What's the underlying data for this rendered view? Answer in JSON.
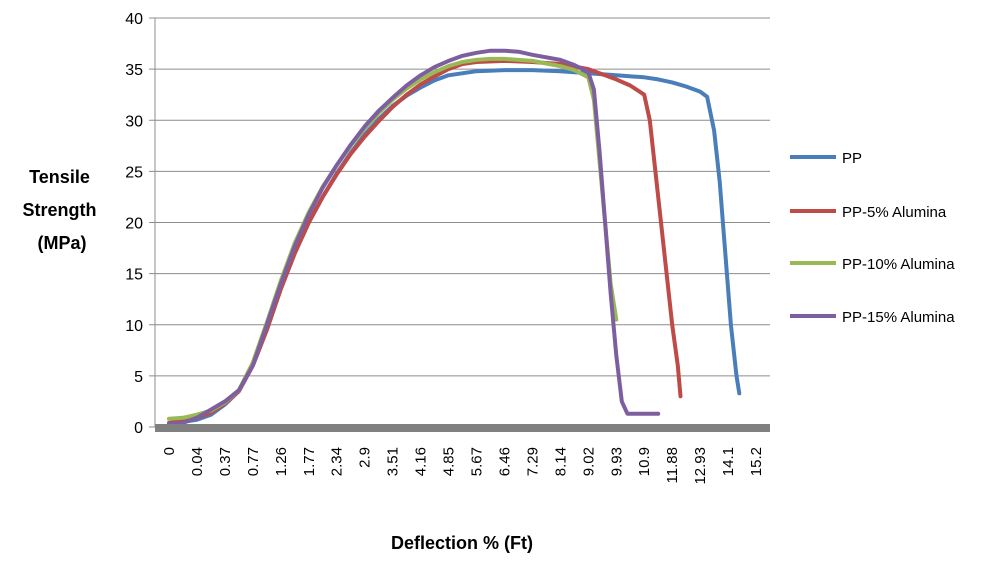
{
  "chart_data": {
    "type": "line",
    "ylabel_lines": [
      "Tensile",
      "Strength",
      "(MPa)"
    ],
    "xlabel": "Deflection % (Ft)",
    "ylim": [
      0,
      40
    ],
    "y_ticks": [
      "0",
      "5",
      "10",
      "15",
      "20",
      "25",
      "30",
      "35",
      "40"
    ],
    "x_ticks": [
      "0",
      "0.04",
      "0.37",
      "0.77",
      "1.26",
      "1.77",
      "2.34",
      "2.9",
      "3.51",
      "4.16",
      "4.85",
      "5.67",
      "6.46",
      "7.29",
      "8.14",
      "9.02",
      "9.93",
      "10.9",
      "11.88",
      "12.93",
      "14.1",
      "15.2"
    ],
    "grid": true,
    "legend_position": "right",
    "series": [
      {
        "name": "PP",
        "color": "#4a7ebb",
        "points": [
          [
            0,
            0.3
          ],
          [
            0.5,
            0.5
          ],
          [
            1,
            0.7
          ],
          [
            1.5,
            1.2
          ],
          [
            2,
            2.2
          ],
          [
            2.5,
            3.5
          ],
          [
            3,
            6
          ],
          [
            3.5,
            9.5
          ],
          [
            4,
            13.5
          ],
          [
            4.5,
            17
          ],
          [
            5,
            20
          ],
          [
            5.5,
            22.5
          ],
          [
            6,
            24.8
          ],
          [
            6.5,
            26.8
          ],
          [
            7,
            28.6
          ],
          [
            7.5,
            30.1
          ],
          [
            8,
            31.4
          ],
          [
            8.5,
            32.4
          ],
          [
            9,
            33.2
          ],
          [
            9.5,
            33.9
          ],
          [
            10,
            34.4
          ],
          [
            11,
            34.8
          ],
          [
            12,
            34.9
          ],
          [
            13,
            34.9
          ],
          [
            14,
            34.8
          ],
          [
            15,
            34.6
          ],
          [
            16,
            34.4
          ],
          [
            17,
            34.2
          ],
          [
            17.5,
            34
          ],
          [
            18,
            33.7
          ],
          [
            18.5,
            33.3
          ],
          [
            19,
            32.8
          ],
          [
            19.25,
            32.3
          ],
          [
            19.5,
            29
          ],
          [
            19.7,
            24
          ],
          [
            19.9,
            17
          ],
          [
            20.1,
            10
          ],
          [
            20.3,
            5
          ],
          [
            20.4,
            3.3
          ]
        ]
      },
      {
        "name": "PP-5% Alumina",
        "color": "#be4b48",
        "points": [
          [
            0,
            0.4
          ],
          [
            0.5,
            0.6
          ],
          [
            1,
            0.9
          ],
          [
            1.5,
            1.4
          ],
          [
            2,
            2.3
          ],
          [
            2.5,
            3.5
          ],
          [
            3,
            6
          ],
          [
            3.5,
            9.5
          ],
          [
            4,
            13.5
          ],
          [
            4.5,
            17
          ],
          [
            5,
            20
          ],
          [
            5.5,
            22.5
          ],
          [
            6,
            24.7
          ],
          [
            6.5,
            26.7
          ],
          [
            7,
            28.4
          ],
          [
            7.5,
            29.9
          ],
          [
            8,
            31.3
          ],
          [
            8.5,
            32.5
          ],
          [
            9,
            33.5
          ],
          [
            9.5,
            34.3
          ],
          [
            10,
            35
          ],
          [
            10.5,
            35.5
          ],
          [
            11,
            35.7
          ],
          [
            12,
            35.8
          ],
          [
            13,
            35.7
          ],
          [
            14,
            35.5
          ],
          [
            15,
            35
          ],
          [
            15.5,
            34.5
          ],
          [
            16,
            34
          ],
          [
            16.5,
            33.4
          ],
          [
            17,
            32.5
          ],
          [
            17.2,
            30
          ],
          [
            17.4,
            25
          ],
          [
            17.6,
            20
          ],
          [
            17.8,
            15
          ],
          [
            18,
            10
          ],
          [
            18.2,
            6
          ],
          [
            18.3,
            3
          ]
        ]
      },
      {
        "name": "PP-10% Alumina",
        "color": "#98b954",
        "points": [
          [
            0,
            0.8
          ],
          [
            0.5,
            0.9
          ],
          [
            1,
            1.2
          ],
          [
            1.5,
            1.6
          ],
          [
            2,
            2.4
          ],
          [
            2.5,
            3.6
          ],
          [
            3,
            6.3
          ],
          [
            3.5,
            10.2
          ],
          [
            4,
            14.3
          ],
          [
            4.5,
            18
          ],
          [
            5,
            21
          ],
          [
            5.5,
            23.5
          ],
          [
            6,
            25.6
          ],
          [
            6.5,
            27.5
          ],
          [
            7,
            29.2
          ],
          [
            7.5,
            30.7
          ],
          [
            8,
            32
          ],
          [
            8.5,
            33.1
          ],
          [
            9,
            34
          ],
          [
            9.5,
            34.7
          ],
          [
            10,
            35.3
          ],
          [
            10.5,
            35.7
          ],
          [
            11,
            35.9
          ],
          [
            11.5,
            36
          ],
          [
            12,
            36
          ],
          [
            13,
            35.8
          ],
          [
            14,
            35.3
          ],
          [
            14.5,
            34.9
          ],
          [
            15,
            34.2
          ],
          [
            15.2,
            32
          ],
          [
            15.4,
            26
          ],
          [
            15.6,
            20
          ],
          [
            15.8,
            14
          ],
          [
            16,
            10.5
          ]
        ]
      },
      {
        "name": "PP-15% Alumina",
        "color": "#7d5fa0",
        "points": [
          [
            0,
            0.3
          ],
          [
            0.5,
            0.4
          ],
          [
            1,
            0.9
          ],
          [
            1.5,
            1.7
          ],
          [
            2,
            2.5
          ],
          [
            2.5,
            3.6
          ],
          [
            3,
            6
          ],
          [
            3.5,
            10
          ],
          [
            4,
            14
          ],
          [
            4.5,
            17.7
          ],
          [
            5,
            20.8
          ],
          [
            5.5,
            23.4
          ],
          [
            6,
            25.6
          ],
          [
            6.5,
            27.6
          ],
          [
            7,
            29.4
          ],
          [
            7.5,
            30.9
          ],
          [
            8,
            32.2
          ],
          [
            8.5,
            33.4
          ],
          [
            9,
            34.4
          ],
          [
            9.5,
            35.2
          ],
          [
            10,
            35.8
          ],
          [
            10.5,
            36.3
          ],
          [
            11,
            36.6
          ],
          [
            11.5,
            36.8
          ],
          [
            12,
            36.8
          ],
          [
            12.5,
            36.7
          ],
          [
            13,
            36.4
          ],
          [
            14,
            35.9
          ],
          [
            14.5,
            35.4
          ],
          [
            15,
            34.7
          ],
          [
            15.2,
            33
          ],
          [
            15.4,
            27
          ],
          [
            15.6,
            20
          ],
          [
            15.8,
            13
          ],
          [
            16,
            7
          ],
          [
            16.2,
            2.5
          ],
          [
            16.4,
            1.3
          ],
          [
            17,
            1.3
          ],
          [
            17.5,
            1.3
          ]
        ]
      }
    ]
  }
}
